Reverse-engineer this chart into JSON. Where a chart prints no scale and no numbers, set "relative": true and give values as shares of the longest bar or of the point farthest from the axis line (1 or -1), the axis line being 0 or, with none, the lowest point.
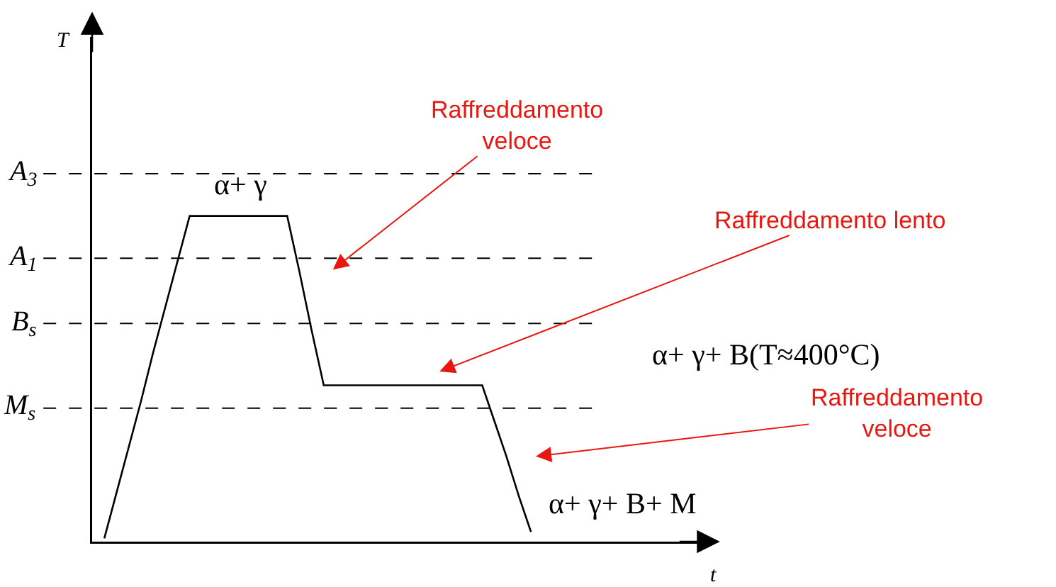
{
  "chart_data": {
    "type": "line",
    "relative": true,
    "xlabel": "t",
    "ylabel": "T",
    "categories": [
      null,
      null,
      null,
      null,
      null,
      null,
      null,
      null,
      null,
      null,
      null,
      null,
      null,
      null,
      null,
      null,
      null,
      null,
      null,
      null,
      null,
      null,
      null,
      null,
      null,
      null,
      null,
      null,
      null,
      null,
      null,
      null,
      null,
      null,
      null,
      null,
      null,
      null,
      null,
      null,
      null,
      null,
      null,
      null,
      null,
      null,
      null,
      null,
      null,
      null
    ],
    "ylim": [
      0,
      1.55
    ],
    "series": [
      {
        "color": "#000000",
        "values": [
          null,
          0.01,
          0.15,
          0.29,
          0.43,
          0.58,
          0.72,
          0.86,
          1,
          1,
          1,
          1,
          1,
          1,
          1,
          1,
          1,
          0.83,
          0.65,
          0.48,
          0.48,
          0.48,
          0.48,
          0.48,
          0.48,
          0.48,
          0.48,
          0.48,
          0.48,
          0.48,
          0.48,
          0.48,
          0.48,
          0.37,
          0.26,
          0.14,
          0.03,
          null,
          null,
          null,
          null,
          null,
          null,
          null,
          null,
          null,
          null,
          null,
          null,
          null
        ]
      }
    ],
    "marker": "none",
    "line_style": "solid",
    "ref_lines": [
      {
        "axis": "y",
        "value": 1.13,
        "label": "A$_{3}$",
        "line_style": "dashed"
      },
      {
        "axis": "y",
        "value": 0.87,
        "label": "A$_{1}$",
        "line_style": "dashed"
      },
      {
        "axis": "y",
        "value": 0.67,
        "label": "B$_{s}$",
        "line_style": "dashed"
      },
      {
        "axis": "y",
        "value": 0.41,
        "label": "M$_{s}$",
        "line_style": "dashed"
      }
    ],
    "annotations": [
      "α+ γ",
      "α+ γ+ B(T≈400°C)",
      "α+ γ+ B+ M",
      "Raffreddamento veloce",
      "Raffreddamento lento",
      "Raffreddamento veloce"
    ]
  }
}
